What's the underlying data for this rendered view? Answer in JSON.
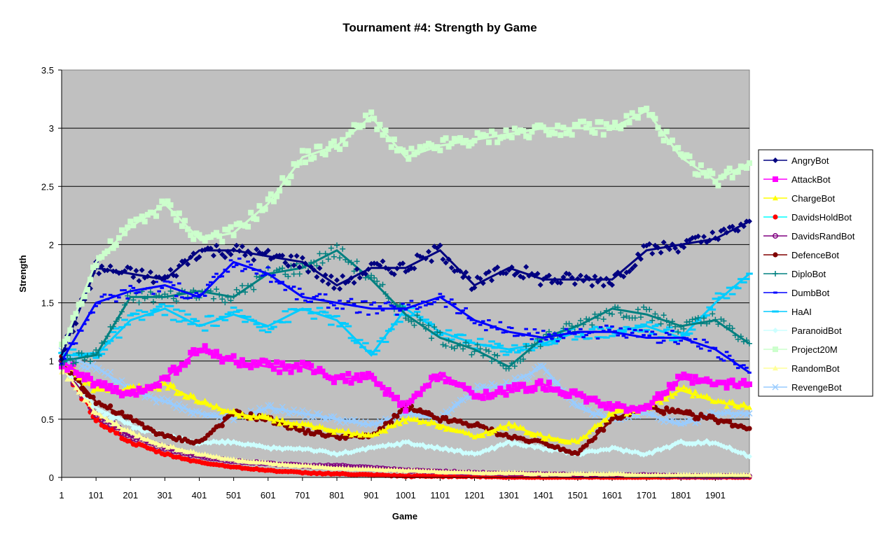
{
  "chart_data": {
    "type": "line",
    "title": "Tournament #4: Strength by Game",
    "xlabel": "Game",
    "ylabel": "Strength",
    "xlim": [
      1,
      2000
    ],
    "ylim": [
      0,
      3.5
    ],
    "grid": true,
    "legend_position": "right",
    "plot_background": "#c0c0c0",
    "x_tick_labels": [
      "1",
      "101",
      "201",
      "301",
      "401",
      "501",
      "601",
      "701",
      "801",
      "901",
      "1001",
      "1101",
      "1201",
      "1301",
      "1401",
      "1501",
      "1601",
      "1701",
      "1801",
      "1901"
    ],
    "y_tick_labels": [
      "0",
      "0.5",
      "1",
      "1.5",
      "2",
      "2.5",
      "3",
      "3.5"
    ],
    "y_ticks": [
      0,
      0.5,
      1,
      1.5,
      2,
      2.5,
      3,
      3.5
    ],
    "x": [
      1,
      101,
      201,
      301,
      401,
      501,
      601,
      701,
      801,
      901,
      1001,
      1101,
      1201,
      1301,
      1401,
      1501,
      1601,
      1701,
      1801,
      1901,
      2000
    ],
    "series": [
      {
        "name": "AngryBot",
        "color": "#000080",
        "marker": "diamond",
        "values": [
          1.05,
          1.8,
          1.75,
          1.7,
          1.95,
          1.95,
          1.9,
          1.85,
          1.65,
          1.8,
          1.8,
          1.95,
          1.65,
          1.8,
          1.7,
          1.7,
          1.7,
          1.95,
          2.0,
          2.05,
          2.2
        ]
      },
      {
        "name": "AttackBot",
        "color": "#ff00ff",
        "marker": "square",
        "values": [
          1.0,
          0.8,
          0.7,
          0.85,
          1.1,
          1.0,
          0.95,
          0.95,
          0.85,
          0.85,
          0.6,
          0.9,
          0.7,
          0.75,
          0.8,
          0.7,
          0.6,
          0.6,
          0.85,
          0.8,
          0.8
        ]
      },
      {
        "name": "ChargeBot",
        "color": "#ffff00",
        "marker": "triangle",
        "values": [
          1.0,
          0.75,
          0.75,
          0.8,
          0.65,
          0.55,
          0.5,
          0.45,
          0.4,
          0.35,
          0.5,
          0.45,
          0.35,
          0.45,
          0.35,
          0.3,
          0.55,
          0.6,
          0.75,
          0.65,
          0.6
        ]
      },
      {
        "name": "DavidsHoldBot",
        "color": "#ff0000",
        "line_color": "#00ffff",
        "marker": "circle",
        "values": [
          1.0,
          0.5,
          0.3,
          0.2,
          0.13,
          0.09,
          0.06,
          0.04,
          0.03,
          0.02,
          0.01,
          0.01,
          0.01,
          0.0,
          0.0,
          0.0,
          0.0,
          0.0,
          0.0,
          0.0,
          0.0
        ]
      },
      {
        "name": "DavidsRandBot",
        "color": "#800080",
        "marker": "open-circle",
        "values": [
          1.0,
          0.55,
          0.35,
          0.25,
          0.18,
          0.14,
          0.12,
          0.1,
          0.1,
          0.08,
          0.06,
          0.05,
          0.04,
          0.03,
          0.03,
          0.02,
          0.02,
          0.02,
          0.01,
          0.01,
          0.01
        ]
      },
      {
        "name": "DefenceBot",
        "color": "#800000",
        "marker": "circle",
        "values": [
          1.0,
          0.65,
          0.5,
          0.35,
          0.3,
          0.55,
          0.5,
          0.4,
          0.35,
          0.35,
          0.6,
          0.5,
          0.45,
          0.35,
          0.3,
          0.2,
          0.5,
          0.6,
          0.55,
          0.5,
          0.42
        ]
      },
      {
        "name": "DiploBot",
        "color": "#008080",
        "marker": "plus",
        "values": [
          1.0,
          1.05,
          1.55,
          1.55,
          1.6,
          1.55,
          1.75,
          1.8,
          1.95,
          1.7,
          1.4,
          1.2,
          1.1,
          0.95,
          1.2,
          1.3,
          1.45,
          1.4,
          1.3,
          1.35,
          1.15
        ]
      },
      {
        "name": "DumbBot",
        "color": "#0000ff",
        "marker": "dash",
        "values": [
          1.0,
          1.5,
          1.6,
          1.65,
          1.55,
          1.85,
          1.75,
          1.55,
          1.5,
          1.45,
          1.45,
          1.55,
          1.35,
          1.25,
          1.2,
          1.25,
          1.25,
          1.2,
          1.2,
          1.1,
          0.9
        ]
      },
      {
        "name": "HaAI",
        "color": "#00ccff",
        "marker": "long-dash",
        "values": [
          1.05,
          1.05,
          1.35,
          1.45,
          1.3,
          1.4,
          1.3,
          1.45,
          1.35,
          1.05,
          1.45,
          1.25,
          1.15,
          1.1,
          1.15,
          1.25,
          1.25,
          1.3,
          1.2,
          1.5,
          1.75
        ]
      },
      {
        "name": "ParanoidBot",
        "color": "#ccffff",
        "marker": "diamond",
        "values": [
          1.0,
          0.6,
          0.45,
          0.35,
          0.3,
          0.3,
          0.25,
          0.25,
          0.2,
          0.25,
          0.3,
          0.25,
          0.2,
          0.3,
          0.25,
          0.2,
          0.25,
          0.2,
          0.3,
          0.3,
          0.18
        ]
      },
      {
        "name": "Project20M",
        "color": "#ccffcc",
        "marker": "square",
        "values": [
          1.1,
          1.85,
          2.15,
          2.35,
          2.05,
          2.1,
          2.35,
          2.75,
          2.85,
          3.1,
          2.75,
          2.85,
          2.9,
          2.95,
          3.0,
          3.0,
          3.0,
          3.15,
          2.75,
          2.55,
          2.7
        ]
      },
      {
        "name": "RandomBot",
        "color": "#ffff99",
        "marker": "triangle",
        "values": [
          0.95,
          0.55,
          0.38,
          0.27,
          0.2,
          0.15,
          0.12,
          0.1,
          0.08,
          0.07,
          0.06,
          0.05,
          0.04,
          0.04,
          0.03,
          0.03,
          0.03,
          0.02,
          0.02,
          0.02,
          0.02
        ]
      },
      {
        "name": "RevengeBot",
        "color": "#99ccff",
        "marker": "x",
        "values": [
          1.05,
          0.95,
          0.75,
          0.65,
          0.55,
          0.5,
          0.6,
          0.55,
          0.5,
          0.45,
          0.55,
          0.5,
          0.75,
          0.8,
          0.95,
          0.6,
          0.5,
          0.55,
          0.45,
          0.55,
          0.55
        ]
      }
    ]
  }
}
